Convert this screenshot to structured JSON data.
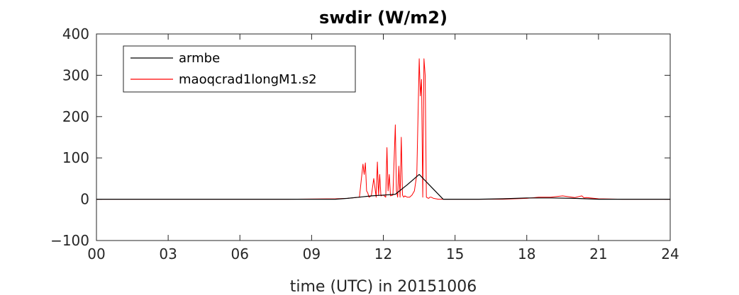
{
  "chart_data": {
    "type": "line",
    "title": "swdir  (W/m2)",
    "xlabel": "time (UTC) in 20151006",
    "ylabel": "",
    "xlim": [
      0,
      24
    ],
    "ylim": [
      -100,
      400
    ],
    "x_ticks": [
      0,
      3,
      6,
      9,
      12,
      15,
      18,
      21,
      24
    ],
    "x_tick_labels": [
      "00",
      "03",
      "06",
      "09",
      "12",
      "15",
      "18",
      "21",
      "24"
    ],
    "y_ticks": [
      -100,
      0,
      100,
      200,
      300,
      400
    ],
    "y_tick_labels": [
      "−100",
      "0",
      "100",
      "200",
      "300",
      "400"
    ],
    "grid": false,
    "legend_position": "top-left",
    "series": [
      {
        "name": "armbe",
        "color": "#000000",
        "x": [
          0,
          10.0,
          10.5,
          11.0,
          11.5,
          12.0,
          12.5,
          13.0,
          13.5,
          14.0,
          14.5,
          15.0,
          16.0,
          17.0,
          18.0,
          19.0,
          20.0,
          21.0,
          22.0,
          24.0
        ],
        "y": [
          0,
          0,
          2,
          5,
          8,
          10,
          12,
          35,
          60,
          30,
          0,
          0,
          0,
          1,
          3,
          3,
          2,
          0,
          0,
          0
        ]
      },
      {
        "name": "maoqcrad1longM1.s2",
        "color": "#ff0000",
        "x": [
          0,
          2,
          4,
          6,
          8,
          10.0,
          10.5,
          11.0,
          11.15,
          11.2,
          11.25,
          11.3,
          11.35,
          11.4,
          11.5,
          11.6,
          11.7,
          11.75,
          11.8,
          11.85,
          11.9,
          12.0,
          12.1,
          12.15,
          12.2,
          12.25,
          12.3,
          12.4,
          12.5,
          12.55,
          12.6,
          12.65,
          12.7,
          12.75,
          12.8,
          12.85,
          12.9,
          13.0,
          13.1,
          13.2,
          13.3,
          13.4,
          13.5,
          13.55,
          13.6,
          13.65,
          13.7,
          13.75,
          13.8,
          13.85,
          13.9,
          13.95,
          14.0,
          14.1,
          14.3,
          14.5,
          15.0,
          16.0,
          17.0,
          18.0,
          18.5,
          19.0,
          19.5,
          20.0,
          20.3,
          20.4,
          20.5,
          21.0,
          22.0,
          23.0,
          24.0
        ],
        "y": [
          0,
          0,
          0,
          0,
          0,
          1,
          2,
          5,
          85,
          60,
          88,
          20,
          15,
          5,
          8,
          50,
          5,
          90,
          10,
          60,
          8,
          10,
          5,
          125,
          20,
          60,
          8,
          10,
          180,
          20,
          5,
          80,
          5,
          150,
          10,
          5,
          8,
          5,
          5,
          10,
          20,
          60,
          340,
          250,
          290,
          5,
          340,
          300,
          5,
          3,
          2,
          5,
          5,
          2,
          0,
          0,
          0,
          0,
          0,
          2,
          5,
          5,
          8,
          4,
          8,
          3,
          4,
          1,
          0,
          0,
          0
        ]
      }
    ]
  }
}
